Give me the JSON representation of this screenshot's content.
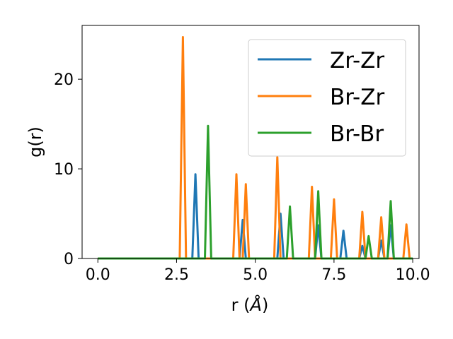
{
  "chart_data": {
    "type": "line",
    "title": "",
    "xlabel_prefix": "r (",
    "xlabel_symbol": "Å",
    "xlabel_suffix": ")",
    "ylabel": "g(r)",
    "xlim": [
      -0.5,
      10.2
    ],
    "ylim": [
      0,
      26
    ],
    "xticks": [
      0.0,
      2.5,
      5.0,
      7.5,
      10.0
    ],
    "xtick_labels": [
      "0.0",
      "2.5",
      "5.0",
      "7.5",
      "10.0"
    ],
    "yticks": [
      0,
      10,
      20
    ],
    "ytick_labels": [
      "0",
      "10",
      "20"
    ],
    "grid": false,
    "legend_position": "top-right",
    "series": [
      {
        "name": "Zr-Zr",
        "color": "#1f77b4",
        "x": [
          0.0,
          3.0,
          3.1,
          3.2,
          4.5,
          4.6,
          4.7,
          5.7,
          5.8,
          5.9,
          6.9,
          7.0,
          7.1,
          7.7,
          7.8,
          7.9,
          8.3,
          8.4,
          8.5,
          8.9,
          9.0,
          9.1,
          9.2,
          9.3,
          9.4,
          10.0
        ],
        "y": [
          0,
          0,
          9.4,
          0,
          0,
          4.3,
          0,
          0,
          5.0,
          0,
          0,
          3.7,
          0,
          0,
          3.1,
          0,
          0,
          1.4,
          0,
          0,
          2.0,
          0,
          0,
          3.7,
          0,
          0
        ]
      },
      {
        "name": "Br-Zr",
        "color": "#ff7f0e",
        "x": [
          0.0,
          2.6,
          2.7,
          2.8,
          4.3,
          4.4,
          4.5,
          4.6,
          4.7,
          4.8,
          5.6,
          5.7,
          5.8,
          6.7,
          6.8,
          6.9,
          7.4,
          7.5,
          7.6,
          8.3,
          8.4,
          8.5,
          8.9,
          9.0,
          9.1,
          9.7,
          9.8,
          9.9
        ],
        "y": [
          0,
          0,
          24.7,
          0,
          0,
          9.4,
          0,
          0,
          8.3,
          0,
          0,
          11.3,
          0,
          0,
          8.0,
          0,
          0,
          6.6,
          0,
          0,
          5.2,
          0,
          0,
          4.6,
          0,
          0,
          3.8,
          0
        ]
      },
      {
        "name": "Br-Br",
        "color": "#2ca02c",
        "x": [
          0.0,
          3.4,
          3.5,
          3.6,
          6.0,
          6.1,
          6.2,
          6.9,
          7.0,
          7.1,
          8.5,
          8.6,
          8.7,
          9.2,
          9.3,
          9.4,
          10.0
        ],
        "y": [
          0,
          0,
          14.8,
          0,
          0,
          5.8,
          0,
          0,
          7.5,
          0,
          0,
          2.5,
          0,
          0,
          6.4,
          0,
          0
        ]
      }
    ]
  }
}
